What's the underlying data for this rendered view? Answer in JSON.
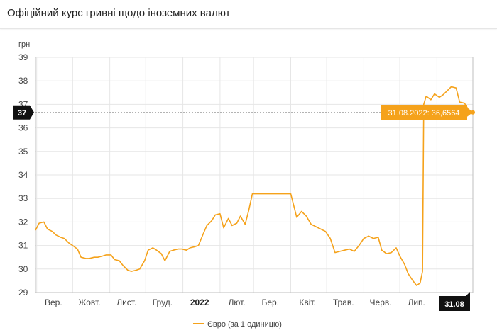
{
  "header": {
    "title": "Офіційний курс гривні щодо іноземних валют"
  },
  "colors": {
    "series": "#f5a21b",
    "badge": "#111111",
    "grid": "#e6e6e6",
    "axis": "#bfbfbf"
  },
  "chart_data": {
    "type": "line",
    "title": "",
    "ylabel": "грн",
    "ylim": [
      29,
      39
    ],
    "yticks": [
      29,
      30,
      31,
      32,
      33,
      34,
      35,
      36,
      37,
      38,
      39
    ],
    "x_start": "2021-08-31",
    "x_end": "2022-08-31",
    "month_labels": [
      {
        "label": "Вер.",
        "date": "2021-09-15",
        "bold": false
      },
      {
        "label": "Жовт.",
        "date": "2021-10-15",
        "bold": false
      },
      {
        "label": "Лист.",
        "date": "2021-11-15",
        "bold": false
      },
      {
        "label": "Груд.",
        "date": "2021-12-15",
        "bold": false
      },
      {
        "label": "2022",
        "date": "2022-01-15",
        "bold": true
      },
      {
        "label": "Лют.",
        "date": "2022-02-15",
        "bold": false
      },
      {
        "label": "Бер.",
        "date": "2022-03-15",
        "bold": false
      },
      {
        "label": "Квіт.",
        "date": "2022-04-15",
        "bold": false
      },
      {
        "label": "Трав.",
        "date": "2022-05-15",
        "bold": false
      },
      {
        "label": "Черв.",
        "date": "2022-06-15",
        "bold": false
      },
      {
        "label": "Лип.",
        "date": "2022-07-15",
        "bold": false
      }
    ],
    "series": [
      {
        "name": "Євро (за 1 одиницю)",
        "points": [
          [
            "2021-08-31",
            31.65
          ],
          [
            "2021-09-03",
            31.95
          ],
          [
            "2021-09-07",
            32.0
          ],
          [
            "2021-09-10",
            31.7
          ],
          [
            "2021-09-14",
            31.6
          ],
          [
            "2021-09-17",
            31.45
          ],
          [
            "2021-09-21",
            31.35
          ],
          [
            "2021-09-24",
            31.3
          ],
          [
            "2021-09-28",
            31.1
          ],
          [
            "2021-10-01",
            31.0
          ],
          [
            "2021-10-05",
            30.85
          ],
          [
            "2021-10-08",
            30.5
          ],
          [
            "2021-10-12",
            30.45
          ],
          [
            "2021-10-15",
            30.45
          ],
          [
            "2021-10-19",
            30.5
          ],
          [
            "2021-10-22",
            30.5
          ],
          [
            "2021-10-26",
            30.55
          ],
          [
            "2021-10-29",
            30.6
          ],
          [
            "2021-11-02",
            30.6
          ],
          [
            "2021-11-05",
            30.4
          ],
          [
            "2021-11-09",
            30.35
          ],
          [
            "2021-11-12",
            30.15
          ],
          [
            "2021-11-16",
            29.95
          ],
          [
            "2021-11-19",
            29.9
          ],
          [
            "2021-11-23",
            29.95
          ],
          [
            "2021-11-26",
            30.0
          ],
          [
            "2021-11-30",
            30.35
          ],
          [
            "2021-12-03",
            30.8
          ],
          [
            "2021-12-07",
            30.9
          ],
          [
            "2021-12-10",
            30.8
          ],
          [
            "2021-12-14",
            30.65
          ],
          [
            "2021-12-17",
            30.35
          ],
          [
            "2021-12-21",
            30.75
          ],
          [
            "2021-12-24",
            30.8
          ],
          [
            "2021-12-28",
            30.85
          ],
          [
            "2021-12-31",
            30.85
          ],
          [
            "2022-01-04",
            30.8
          ],
          [
            "2022-01-07",
            30.9
          ],
          [
            "2022-01-11",
            30.95
          ],
          [
            "2022-01-14",
            31.0
          ],
          [
            "2022-01-18",
            31.5
          ],
          [
            "2022-01-21",
            31.85
          ],
          [
            "2022-01-25",
            32.05
          ],
          [
            "2022-01-28",
            32.3
          ],
          [
            "2022-02-01",
            32.35
          ],
          [
            "2022-02-04",
            31.75
          ],
          [
            "2022-02-08",
            32.15
          ],
          [
            "2022-02-11",
            31.85
          ],
          [
            "2022-02-15",
            31.95
          ],
          [
            "2022-02-18",
            32.25
          ],
          [
            "2022-02-22",
            31.9
          ],
          [
            "2022-02-25",
            32.5
          ],
          [
            "2022-02-28",
            33.2
          ],
          [
            "2022-03-15",
            33.2
          ],
          [
            "2022-04-01",
            33.2
          ],
          [
            "2022-04-06",
            32.2
          ],
          [
            "2022-04-10",
            32.45
          ],
          [
            "2022-04-14",
            32.25
          ],
          [
            "2022-04-18",
            31.9
          ],
          [
            "2022-04-22",
            31.8
          ],
          [
            "2022-04-26",
            31.7
          ],
          [
            "2022-04-30",
            31.6
          ],
          [
            "2022-05-04",
            31.3
          ],
          [
            "2022-05-08",
            30.7
          ],
          [
            "2022-05-12",
            30.75
          ],
          [
            "2022-05-16",
            30.8
          ],
          [
            "2022-05-20",
            30.85
          ],
          [
            "2022-05-24",
            30.75
          ],
          [
            "2022-05-28",
            31.0
          ],
          [
            "2022-06-01",
            31.3
          ],
          [
            "2022-06-05",
            31.4
          ],
          [
            "2022-06-09",
            31.3
          ],
          [
            "2022-06-13",
            31.35
          ],
          [
            "2022-06-16",
            30.8
          ],
          [
            "2022-06-20",
            30.65
          ],
          [
            "2022-06-24",
            30.7
          ],
          [
            "2022-06-28",
            30.9
          ],
          [
            "2022-07-01",
            30.55
          ],
          [
            "2022-07-05",
            30.2
          ],
          [
            "2022-07-08",
            29.8
          ],
          [
            "2022-07-12",
            29.5
          ],
          [
            "2022-07-15",
            29.3
          ],
          [
            "2022-07-18",
            29.4
          ],
          [
            "2022-07-20",
            29.9
          ],
          [
            "2022-07-21",
            37.0
          ],
          [
            "2022-07-23",
            37.35
          ],
          [
            "2022-07-27",
            37.2
          ],
          [
            "2022-07-30",
            37.45
          ],
          [
            "2022-08-03",
            37.3
          ],
          [
            "2022-08-06",
            37.4
          ],
          [
            "2022-08-10",
            37.6
          ],
          [
            "2022-08-13",
            37.75
          ],
          [
            "2022-08-17",
            37.7
          ],
          [
            "2022-08-20",
            37.1
          ],
          [
            "2022-08-24",
            37.05
          ],
          [
            "2022-08-27",
            36.8
          ],
          [
            "2022-08-31",
            36.6564
          ]
        ]
      }
    ],
    "crosshair": {
      "y_badge": "37",
      "x_badge": "31.08",
      "tooltip": "31.08.2022: 36,6564"
    },
    "legend_position": "bottom-center",
    "grid": true
  }
}
